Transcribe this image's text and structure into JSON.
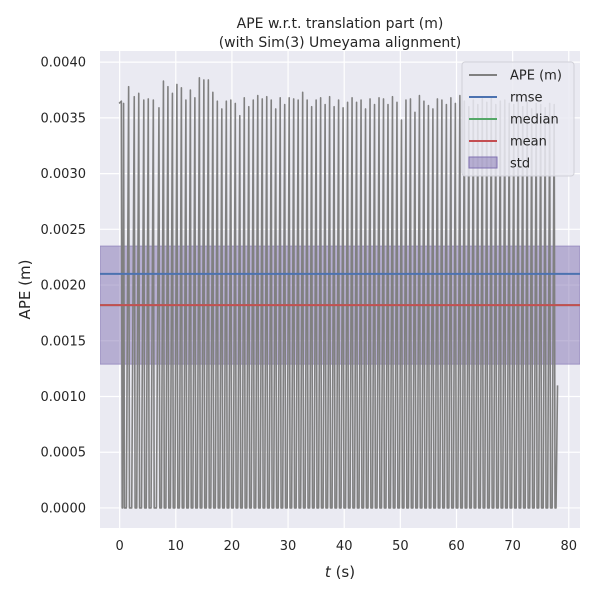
{
  "chart_data": {
    "type": "line",
    "title": "APE w.r.t. translation part (m)",
    "subtitle": "(with Sim(3) Umeyama alignment)",
    "xlabel_italic": "t",
    "xlabel_unit": " (s)",
    "ylabel": "APE (m)",
    "xlim": [
      -3.5,
      82
    ],
    "ylim": [
      -0.00018,
      0.0041
    ],
    "xticks": [
      0,
      10,
      20,
      30,
      40,
      50,
      60,
      70,
      80
    ],
    "xtick_labels": [
      "0",
      "10",
      "20",
      "30",
      "40",
      "50",
      "60",
      "70",
      "80"
    ],
    "yticks": [
      0.0,
      0.0005,
      0.001,
      0.0015,
      0.002,
      0.0025,
      0.003,
      0.0035,
      0.004
    ],
    "ytick_labels": [
      "0.0000",
      "0.0005",
      "0.0010",
      "0.0015",
      "0.0020",
      "0.0025",
      "0.0030",
      "0.0035",
      "0.0040"
    ],
    "grid": true,
    "legend_position": "top-right",
    "series": [
      {
        "name": "APE (m)",
        "color": "#808080",
        "pattern": "oscillating between ~0 and peaks",
        "peaks": [
          [
            -0.1,
            0.00363
          ],
          [
            0.3,
            0.00365
          ],
          [
            0.7,
            0.00363
          ],
          [
            1.6,
            0.00378
          ],
          [
            2.6,
            0.00369
          ],
          [
            3.4,
            0.00372
          ],
          [
            4.3,
            0.00366
          ],
          [
            5.1,
            0.00367
          ],
          [
            6.0,
            0.00366
          ],
          [
            7.0,
            0.00359
          ],
          [
            7.8,
            0.00383
          ],
          [
            8.6,
            0.00378
          ],
          [
            9.4,
            0.00372
          ],
          [
            10.2,
            0.0038
          ],
          [
            11.0,
            0.00377
          ],
          [
            11.8,
            0.00366
          ],
          [
            12.6,
            0.00375
          ],
          [
            13.4,
            0.00368
          ],
          [
            14.2,
            0.00386
          ],
          [
            15.0,
            0.00384
          ],
          [
            15.8,
            0.00384
          ],
          [
            16.6,
            0.00373
          ],
          [
            17.4,
            0.00365
          ],
          [
            18.2,
            0.00358
          ],
          [
            19.0,
            0.00365
          ],
          [
            19.8,
            0.00366
          ],
          [
            20.6,
            0.00363
          ],
          [
            21.4,
            0.00352
          ],
          [
            22.2,
            0.00368
          ],
          [
            23.0,
            0.0036
          ],
          [
            23.8,
            0.00366
          ],
          [
            24.6,
            0.0037
          ],
          [
            25.4,
            0.00367
          ],
          [
            26.2,
            0.00369
          ],
          [
            27.0,
            0.00366
          ],
          [
            27.8,
            0.00358
          ],
          [
            28.6,
            0.00368
          ],
          [
            29.4,
            0.00362
          ],
          [
            30.2,
            0.00368
          ],
          [
            31.0,
            0.00367
          ],
          [
            31.8,
            0.00366
          ],
          [
            32.6,
            0.00373
          ],
          [
            33.4,
            0.00366
          ],
          [
            34.2,
            0.0036
          ],
          [
            35.0,
            0.00366
          ],
          [
            35.8,
            0.00368
          ],
          [
            36.6,
            0.00362
          ],
          [
            37.4,
            0.00369
          ],
          [
            38.2,
            0.0036
          ],
          [
            39.0,
            0.00366
          ],
          [
            39.8,
            0.00359
          ],
          [
            40.6,
            0.00364
          ],
          [
            41.4,
            0.00368
          ],
          [
            42.2,
            0.00364
          ],
          [
            43.0,
            0.00366
          ],
          [
            43.8,
            0.00358
          ],
          [
            44.6,
            0.00367
          ],
          [
            45.4,
            0.00362
          ],
          [
            46.2,
            0.00368
          ],
          [
            47.0,
            0.00367
          ],
          [
            47.8,
            0.00362
          ],
          [
            48.6,
            0.00369
          ],
          [
            49.4,
            0.00364
          ],
          [
            50.2,
            0.00348
          ],
          [
            51.0,
            0.00366
          ],
          [
            51.8,
            0.00367
          ],
          [
            52.6,
            0.00355
          ],
          [
            53.4,
            0.0037
          ],
          [
            54.2,
            0.00365
          ],
          [
            55.0,
            0.00361
          ],
          [
            55.8,
            0.00358
          ],
          [
            56.6,
            0.00367
          ],
          [
            57.4,
            0.00366
          ],
          [
            58.2,
            0.00362
          ],
          [
            59.0,
            0.00368
          ],
          [
            59.8,
            0.00363
          ],
          [
            60.6,
            0.0037
          ],
          [
            61.4,
            0.00365
          ],
          [
            62.2,
            0.0036
          ],
          [
            63.0,
            0.00366
          ],
          [
            63.8,
            0.00362
          ],
          [
            64.6,
            0.00367
          ],
          [
            65.4,
            0.00364
          ],
          [
            66.2,
            0.00368
          ],
          [
            67.0,
            0.00362
          ],
          [
            67.8,
            0.00365
          ],
          [
            68.6,
            0.00366
          ],
          [
            69.4,
            0.00363
          ],
          [
            70.2,
            0.00362
          ],
          [
            71.0,
            0.00366
          ],
          [
            71.8,
            0.0036
          ],
          [
            72.6,
            0.00364
          ],
          [
            73.4,
            0.00358
          ],
          [
            74.2,
            0.00363
          ],
          [
            75.0,
            0.00362
          ],
          [
            75.8,
            0.00359
          ],
          [
            76.6,
            0.00363
          ],
          [
            77.4,
            0.00362
          ],
          [
            78.0,
            0.0011
          ]
        ],
        "trough_value": 0.0
      },
      {
        "name": "rmse",
        "color": "#4c72b0",
        "value": 0.0021
      },
      {
        "name": "median",
        "color": "#55a868",
        "value": 0.00182
      },
      {
        "name": "mean",
        "color": "#c44e52",
        "value": 0.00182
      },
      {
        "name": "std",
        "color": "#8172b2",
        "lower": 0.00129,
        "upper": 0.00235
      }
    ]
  }
}
